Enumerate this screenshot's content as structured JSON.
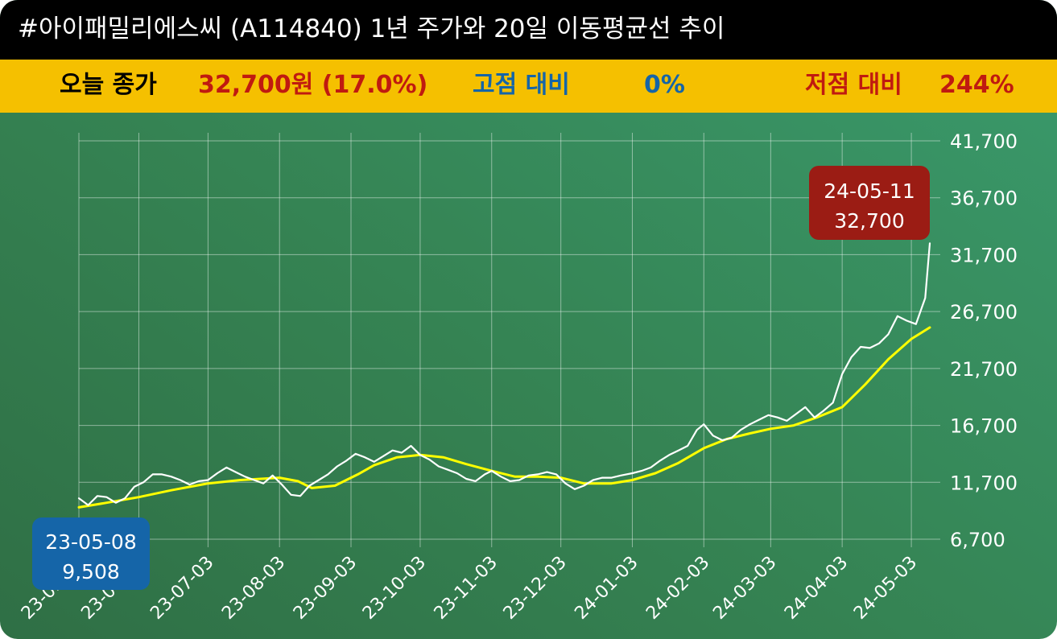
{
  "header": {
    "title": "#아이패밀리에스씨 (A114840) 1년 주가와 20일 이동평균선 추이"
  },
  "summary": {
    "close_label": "오늘 종가",
    "close_value": "32,700원 (17.0%)",
    "high_label": "고점 대비",
    "high_value": "0%",
    "low_label": "저점 대비",
    "low_value": "244%"
  },
  "colors": {
    "price_line": "#ffffff",
    "ma_line": "#ffff00",
    "title_bg": "#000000",
    "info_bg": "#f5c000",
    "start_callout": "#1565a8",
    "end_callout": "#9b1c14"
  },
  "chart_data": {
    "type": "line",
    "title": "#아이패밀리에스씨 (A114840) 1년 주가와 20일 이동평균선 추이",
    "xlabel": "",
    "ylabel": "",
    "ylim": [
      6700,
      41700
    ],
    "y_ticks": [
      "41,700",
      "36,700",
      "31,700",
      "26,700",
      "21,700",
      "16,700",
      "11,700",
      "6,700"
    ],
    "y_tick_values": [
      41700,
      36700,
      31700,
      26700,
      21700,
      16700,
      11700,
      6700
    ],
    "x_ticks": [
      "23-05-08",
      "23-06-03",
      "23-07-03",
      "23-08-03",
      "23-09-03",
      "23-10-03",
      "23-11-03",
      "23-12-03",
      "24-01-03",
      "24-02-03",
      "24-03-03",
      "24-04-03",
      "24-05-03"
    ],
    "x_tick_dates": [
      "2023-05-08",
      "2023-06-03",
      "2023-07-03",
      "2023-08-03",
      "2023-09-03",
      "2023-10-03",
      "2023-11-03",
      "2023-12-03",
      "2024-01-03",
      "2024-02-03",
      "2024-03-03",
      "2024-04-03",
      "2024-05-03"
    ],
    "grid": true,
    "series": [
      {
        "color": "#ffffff",
        "points": [
          [
            "2023-05-08",
            10300
          ],
          [
            "2023-05-12",
            9700
          ],
          [
            "2023-05-16",
            10500
          ],
          [
            "2023-05-20",
            10400
          ],
          [
            "2023-05-24",
            9900
          ],
          [
            "2023-05-28",
            10300
          ],
          [
            "2023-06-01",
            11300
          ],
          [
            "2023-06-05",
            11700
          ],
          [
            "2023-06-09",
            12400
          ],
          [
            "2023-06-13",
            12400
          ],
          [
            "2023-06-17",
            12200
          ],
          [
            "2023-06-21",
            11900
          ],
          [
            "2023-06-25",
            11500
          ],
          [
            "2023-06-29",
            11800
          ],
          [
            "2023-07-03",
            11900
          ],
          [
            "2023-07-07",
            12500
          ],
          [
            "2023-07-11",
            13000
          ],
          [
            "2023-07-15",
            12600
          ],
          [
            "2023-07-19",
            12200
          ],
          [
            "2023-07-23",
            11900
          ],
          [
            "2023-07-27",
            11600
          ],
          [
            "2023-07-31",
            12300
          ],
          [
            "2023-08-04",
            11500
          ],
          [
            "2023-08-08",
            10600
          ],
          [
            "2023-08-12",
            10500
          ],
          [
            "2023-08-16",
            11400
          ],
          [
            "2023-08-20",
            11900
          ],
          [
            "2023-08-24",
            12400
          ],
          [
            "2023-08-28",
            13100
          ],
          [
            "2023-09-01",
            13600
          ],
          [
            "2023-09-05",
            14200
          ],
          [
            "2023-09-09",
            13900
          ],
          [
            "2023-09-13",
            13500
          ],
          [
            "2023-09-17",
            14000
          ],
          [
            "2023-09-21",
            14500
          ],
          [
            "2023-09-25",
            14300
          ],
          [
            "2023-09-29",
            14900
          ],
          [
            "2023-10-03",
            14100
          ],
          [
            "2023-10-07",
            13700
          ],
          [
            "2023-10-11",
            13100
          ],
          [
            "2023-10-15",
            12800
          ],
          [
            "2023-10-19",
            12500
          ],
          [
            "2023-10-23",
            12000
          ],
          [
            "2023-10-27",
            11800
          ],
          [
            "2023-10-31",
            12400
          ],
          [
            "2023-11-03",
            12700
          ],
          [
            "2023-11-07",
            12200
          ],
          [
            "2023-11-11",
            11800
          ],
          [
            "2023-11-15",
            11900
          ],
          [
            "2023-11-19",
            12300
          ],
          [
            "2023-11-23",
            12400
          ],
          [
            "2023-11-27",
            12600
          ],
          [
            "2023-12-01",
            12400
          ],
          [
            "2023-12-05",
            11600
          ],
          [
            "2023-12-09",
            11100
          ],
          [
            "2023-12-13",
            11400
          ],
          [
            "2023-12-17",
            11900
          ],
          [
            "2023-12-21",
            12100
          ],
          [
            "2023-12-25",
            12100
          ],
          [
            "2023-12-29",
            12300
          ],
          [
            "2024-01-03",
            12500
          ],
          [
            "2024-01-07",
            12700
          ],
          [
            "2024-01-11",
            13000
          ],
          [
            "2024-01-15",
            13600
          ],
          [
            "2024-01-19",
            14100
          ],
          [
            "2024-01-23",
            14500
          ],
          [
            "2024-01-27",
            14900
          ],
          [
            "2024-01-31",
            16300
          ],
          [
            "2024-02-03",
            16800
          ],
          [
            "2024-02-07",
            15800
          ],
          [
            "2024-02-11",
            15400
          ],
          [
            "2024-02-15",
            15600
          ],
          [
            "2024-02-19",
            16300
          ],
          [
            "2024-02-23",
            16800
          ],
          [
            "2024-02-27",
            17200
          ],
          [
            "2024-03-02",
            17600
          ],
          [
            "2024-03-06",
            17400
          ],
          [
            "2024-03-10",
            17100
          ],
          [
            "2024-03-14",
            17700
          ],
          [
            "2024-03-18",
            18300
          ],
          [
            "2024-03-22",
            17400
          ],
          [
            "2024-03-26",
            18000
          ],
          [
            "2024-03-30",
            18700
          ],
          [
            "2024-04-03",
            21200
          ],
          [
            "2024-04-07",
            22700
          ],
          [
            "2024-04-11",
            23600
          ],
          [
            "2024-04-15",
            23500
          ],
          [
            "2024-04-19",
            23900
          ],
          [
            "2024-04-23",
            24700
          ],
          [
            "2024-04-27",
            26300
          ],
          [
            "2024-05-01",
            25900
          ],
          [
            "2024-05-05",
            25600
          ],
          [
            "2024-05-09",
            27900
          ],
          [
            "2024-05-11",
            32700
          ]
        ]
      },
      {
        "color": "#ffff00",
        "points": [
          [
            "2023-05-08",
            9500
          ],
          [
            "2023-05-20",
            9900
          ],
          [
            "2023-06-03",
            10400
          ],
          [
            "2023-06-17",
            11000
          ],
          [
            "2023-07-03",
            11600
          ],
          [
            "2023-07-17",
            11900
          ],
          [
            "2023-08-03",
            12100
          ],
          [
            "2023-08-11",
            11800
          ],
          [
            "2023-08-17",
            11200
          ],
          [
            "2023-08-27",
            11400
          ],
          [
            "2023-09-06",
            12400
          ],
          [
            "2023-09-13",
            13200
          ],
          [
            "2023-09-23",
            13900
          ],
          [
            "2023-10-03",
            14100
          ],
          [
            "2023-10-13",
            13900
          ],
          [
            "2023-10-23",
            13300
          ],
          [
            "2023-11-03",
            12700
          ],
          [
            "2023-11-13",
            12200
          ],
          [
            "2023-11-23",
            12200
          ],
          [
            "2023-12-03",
            12100
          ],
          [
            "2023-12-13",
            11600
          ],
          [
            "2023-12-25",
            11600
          ],
          [
            "2024-01-03",
            11900
          ],
          [
            "2024-01-13",
            12500
          ],
          [
            "2024-01-23",
            13400
          ],
          [
            "2024-02-03",
            14700
          ],
          [
            "2024-02-13",
            15500
          ],
          [
            "2024-02-23",
            16000
          ],
          [
            "2024-03-03",
            16400
          ],
          [
            "2024-03-13",
            16700
          ],
          [
            "2024-03-23",
            17400
          ],
          [
            "2024-04-03",
            18300
          ],
          [
            "2024-04-13",
            20300
          ],
          [
            "2024-04-23",
            22500
          ],
          [
            "2024-05-03",
            24300
          ],
          [
            "2024-05-11",
            25300
          ]
        ]
      }
    ],
    "annotations": [
      {
        "date_label": "23-05-08",
        "value_label": "9,508"
      },
      {
        "date_label": "24-05-11",
        "value_label": "32,700"
      }
    ]
  }
}
